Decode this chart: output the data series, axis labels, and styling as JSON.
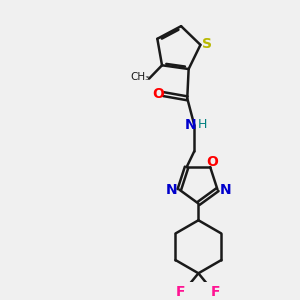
{
  "background_color": "#f0f0f0",
  "bond_color": "#1a1a1a",
  "sulfur_color": "#b8b800",
  "oxygen_color": "#ff0000",
  "nitrogen_color": "#0000cc",
  "fluorine_color": "#ff1493",
  "hydrogen_color": "#008080",
  "figsize": [
    3.0,
    3.0
  ],
  "dpi": 100,
  "xlim": [
    0,
    10
  ],
  "ylim": [
    0,
    10
  ]
}
